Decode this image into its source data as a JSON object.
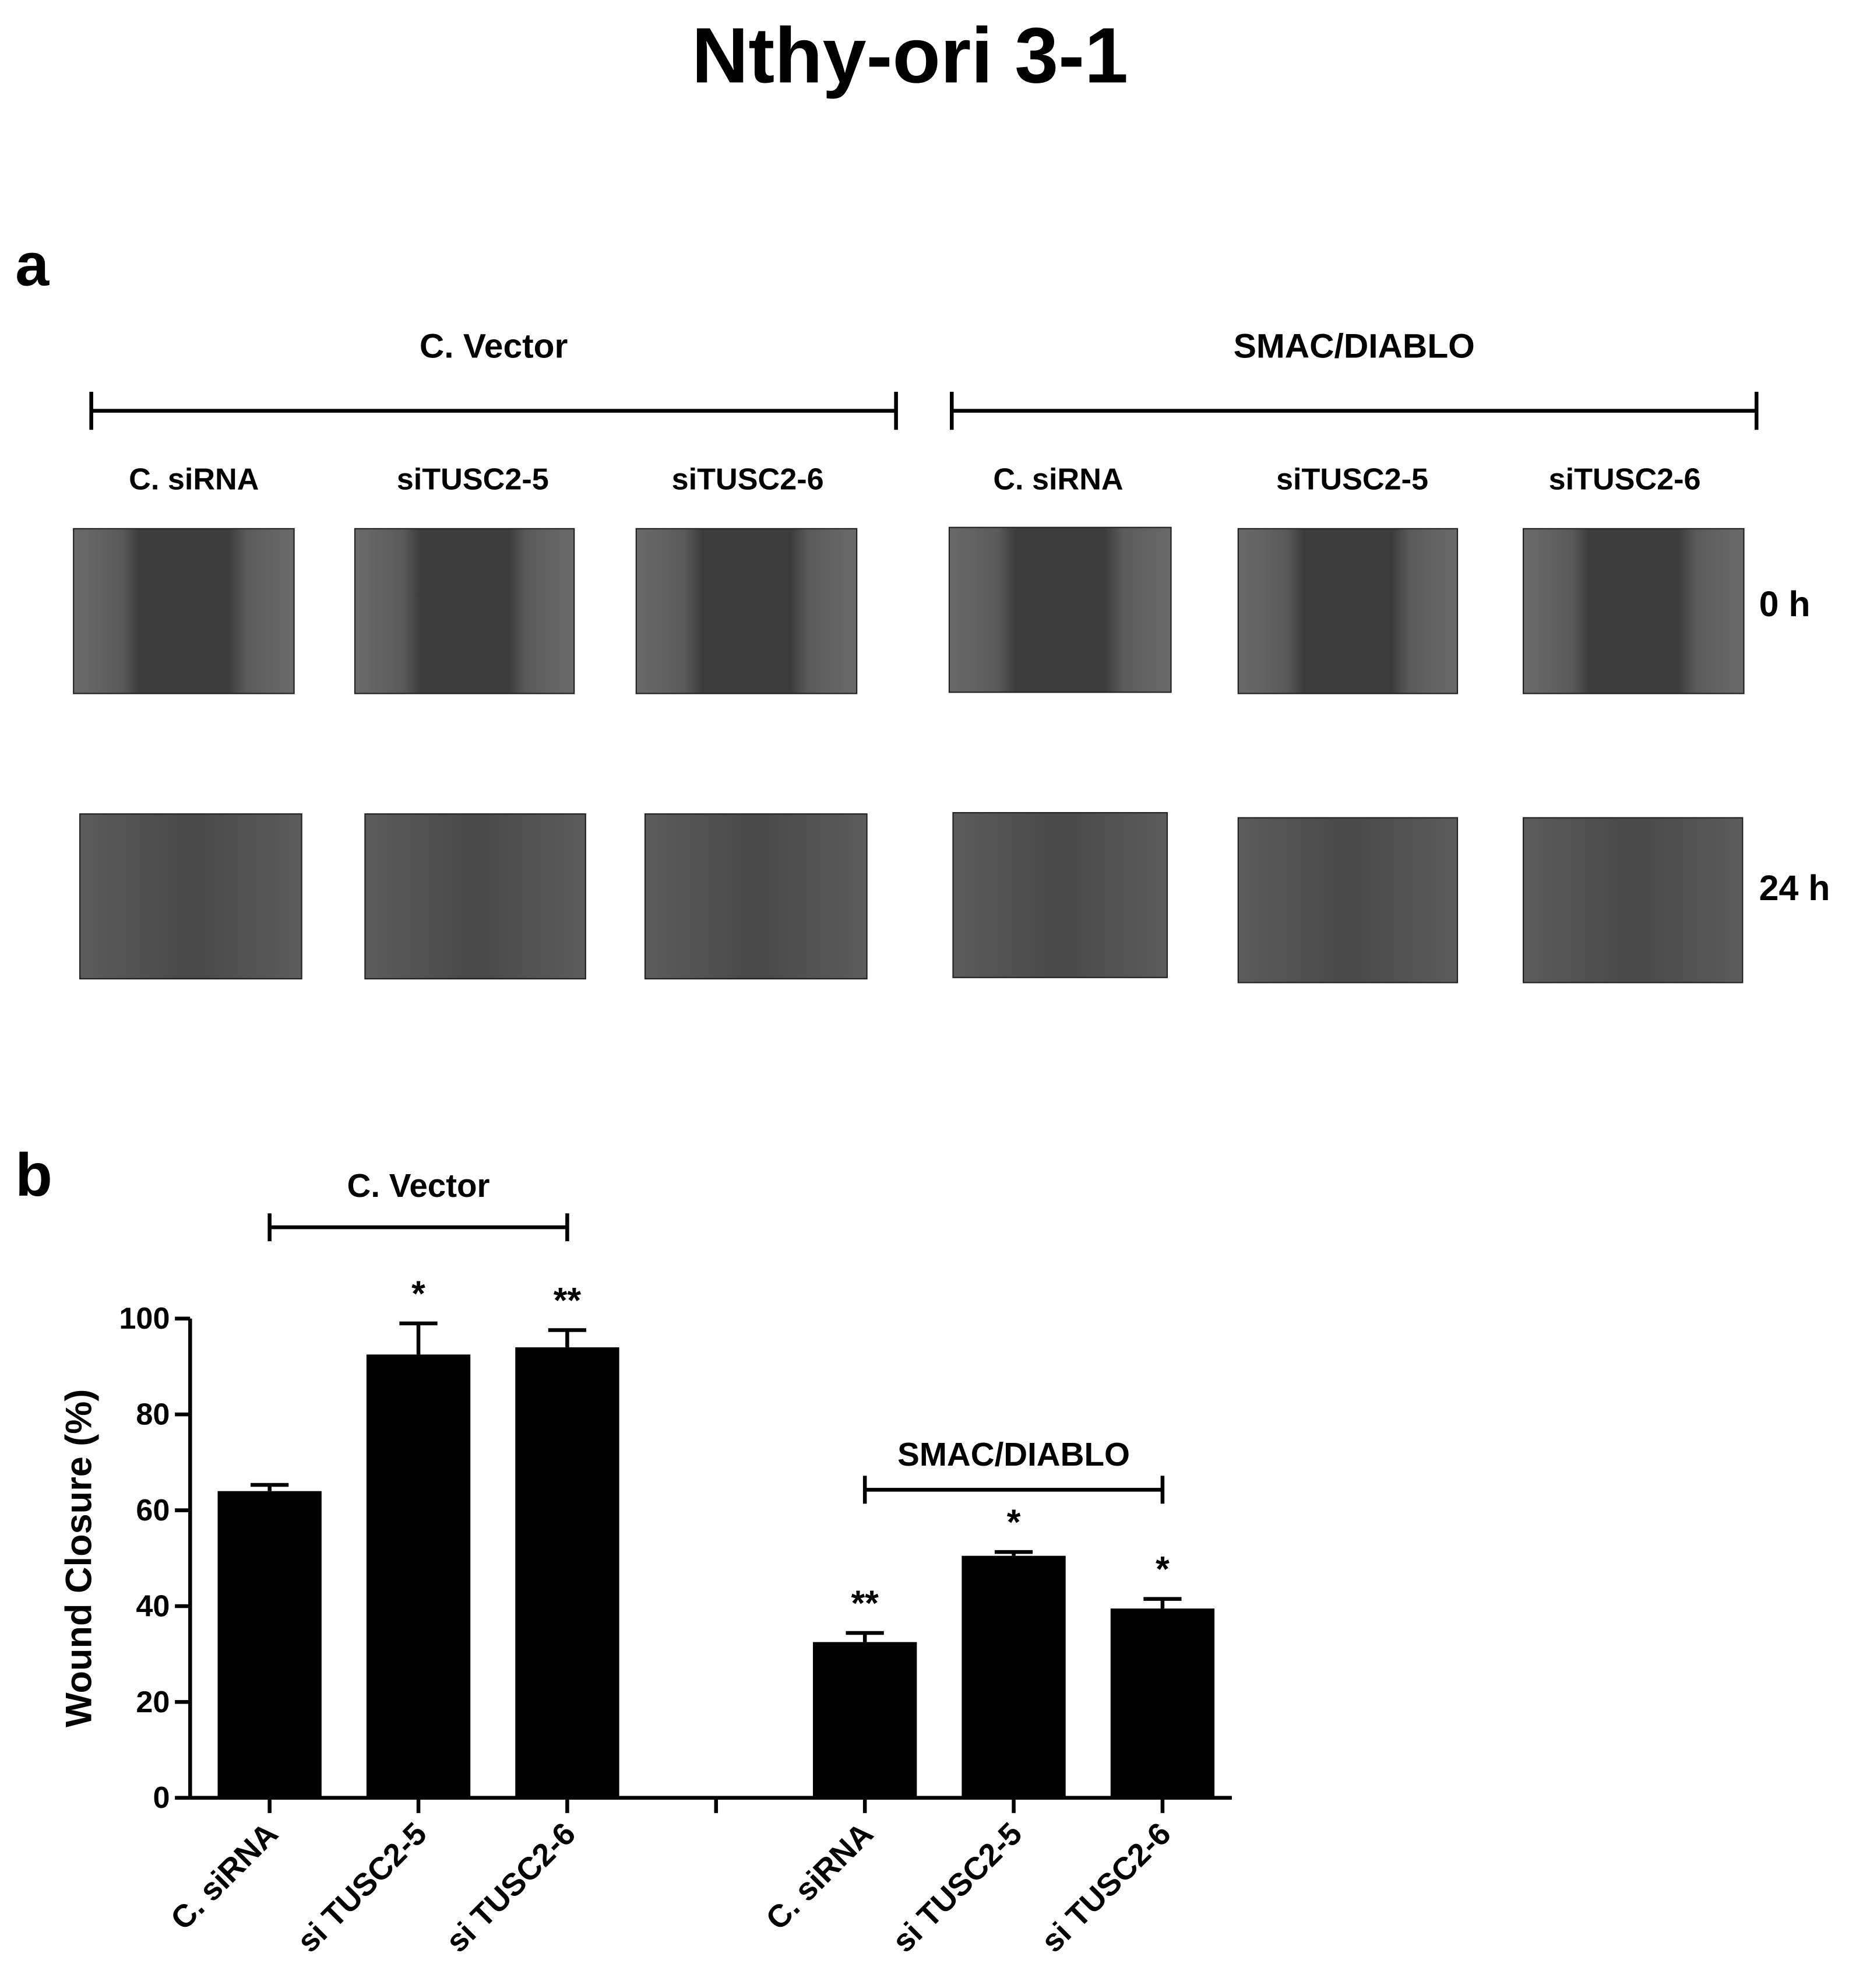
{
  "title": "Nthy-ori 3-1",
  "panel_a": {
    "label": "a",
    "groups": [
      "C. Vector",
      "SMAC/DIABLO"
    ],
    "columns": [
      "C. siRNA",
      "siTUSC2-5",
      "siTUSC2-6",
      "C. siRNA",
      "siTUSC2-5",
      "siTUSC2-6"
    ],
    "rows": [
      "0 h",
      "24 h"
    ]
  },
  "chart_data": {
    "type": "bar",
    "panel_label": "b",
    "y_label": "Wound Closure (%)",
    "categories": [
      "C. siRNA",
      "si TUSC2-5",
      "si TUSC2-6",
      null,
      "C. siRNA",
      "si TUSC2-5",
      "si TUSC2-6"
    ],
    "values": [
      64,
      92.5,
      94,
      null,
      32.5,
      50.5,
      39.5
    ],
    "errors": [
      1.3,
      6.5,
      3.6,
      null,
      1.9,
      0.8,
      2
    ],
    "annotations": [
      null,
      "*",
      "**",
      null,
      "**",
      "*",
      "*"
    ],
    "group_labels": [
      "C. Vector",
      "SMAC/DIABLO"
    ],
    "color": "#000000",
    "ylim": [
      0,
      100
    ],
    "yticks": [
      0,
      20,
      40,
      60,
      80,
      100
    ]
  }
}
